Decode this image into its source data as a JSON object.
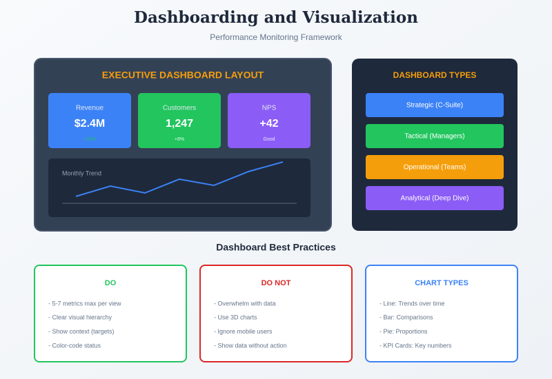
{
  "header": {
    "title": "Dashboarding and Visualization",
    "subtitle": "Performance Monitoring Framework"
  },
  "executive": {
    "title": "EXECUTIVE DASHBOARD LAYOUT",
    "kpis": [
      {
        "label": "Revenue",
        "value": "$2.4M",
        "note": "+12%"
      },
      {
        "label": "Customers",
        "value": "1,247",
        "note": "+8%"
      },
      {
        "label": "NPS",
        "value": "+42",
        "note": "Good"
      }
    ],
    "trend_label": "Monthly Trend"
  },
  "types": {
    "title": "DASHBOARD TYPES",
    "items": [
      "Strategic (C-Suite)",
      "Tactical (Managers)",
      "Operational (Teams)",
      "Analytical (Deep Dive)"
    ]
  },
  "practices": {
    "title": "Dashboard Best Practices",
    "cards": [
      {
        "title": "DO",
        "items": [
          "- 5-7 metrics max per view",
          "- Clear visual hierarchy",
          "- Show context (targets)",
          "- Color-code status"
        ]
      },
      {
        "title": "DO NOT",
        "items": [
          "- Overwhelm with data",
          "- Use 3D charts",
          "- Ignore mobile users",
          "- Show data without action"
        ]
      },
      {
        "title": "CHART TYPES",
        "items": [
          "- Line: Trends over time",
          "- Bar: Comparisons",
          "- Pie: Proportions",
          "- KPI Cards: Key numbers"
        ]
      }
    ]
  }
}
